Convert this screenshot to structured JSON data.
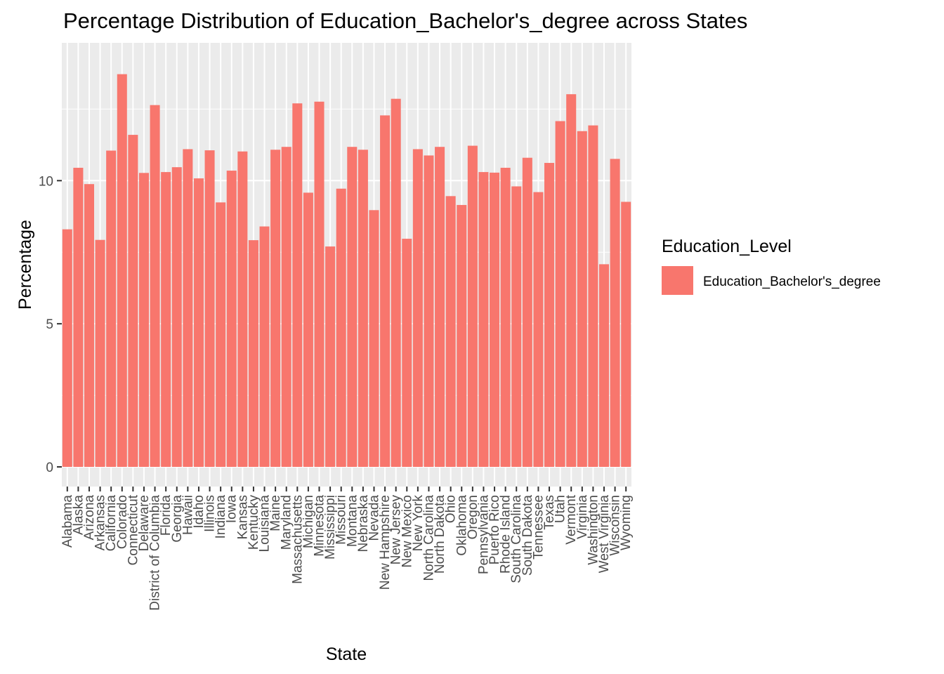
{
  "chart_data": {
    "type": "bar",
    "title": "Percentage Distribution of Education_Bachelor's_degree across States",
    "xlabel": "State",
    "ylabel": "Percentage",
    "ylim": [
      0,
      14.3
    ],
    "yticks": [
      0,
      5,
      10
    ],
    "grid": true,
    "legend_position": "right",
    "legend_title": "Education_Level",
    "colors": {
      "bar": "#F8766D",
      "panel": "#EBEBEB",
      "grid": "#FFFFFF"
    },
    "series": [
      {
        "name": "Education_Bachelor's_degree"
      }
    ],
    "categories": [
      "Alabama",
      "Alaska",
      "Arizona",
      "Arkansas",
      "California",
      "Colorado",
      "Connecticut",
      "Delaware",
      "District of Columbia",
      "Florida",
      "Georgia",
      "Hawaii",
      "Idaho",
      "Illinois",
      "Indiana",
      "Iowa",
      "Kansas",
      "Kentucky",
      "Louisiana",
      "Maine",
      "Maryland",
      "Massachusetts",
      "Michigan",
      "Minnesota",
      "Mississippi",
      "Missouri",
      "Montana",
      "Nebraska",
      "Nevada",
      "New Hampshire",
      "New Jersey",
      "New Mexico",
      "New York",
      "North Carolina",
      "North Dakota",
      "Ohio",
      "Oklahoma",
      "Oregon",
      "Pennsylvania",
      "Puerto Rico",
      "Rhode Island",
      "South Carolina",
      "South Dakota",
      "Tennessee",
      "Texas",
      "Utah",
      "Vermont",
      "Virginia",
      "Washington",
      "West Virginia",
      "Wisconsin",
      "Wyoming"
    ],
    "values": [
      8.3,
      10.45,
      9.88,
      7.93,
      11.05,
      13.72,
      11.6,
      10.27,
      12.64,
      10.3,
      10.47,
      11.1,
      10.08,
      11.06,
      9.24,
      10.35,
      11.02,
      7.92,
      8.4,
      11.08,
      11.18,
      12.7,
      9.58,
      12.76,
      7.7,
      9.72,
      11.18,
      11.08,
      8.97,
      12.28,
      12.86,
      7.97,
      11.1,
      10.88,
      11.18,
      9.46,
      9.15,
      11.22,
      10.3,
      10.28,
      10.45,
      9.8,
      10.8,
      9.6,
      10.62,
      12.08,
      13.02,
      11.73,
      11.93,
      7.08,
      10.76,
      9.26
    ]
  }
}
